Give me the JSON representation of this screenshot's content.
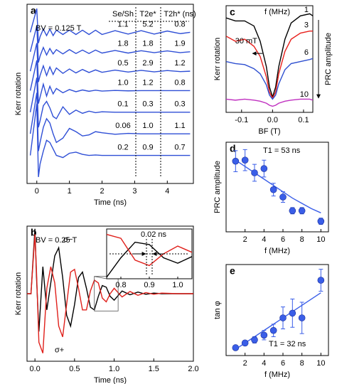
{
  "chart_data": [
    {
      "type": "line",
      "letter": "a",
      "xlabel": "Time (ns)",
      "ylabel": "Kerr rotation",
      "annotation": "BV = 0.125 T",
      "xlim": [
        -0.3,
        4.8
      ],
      "ylim": [
        0.3,
        8.6
      ],
      "xticks": [
        0,
        1,
        2,
        3,
        4
      ],
      "x": [
        -0.2,
        0,
        0.05,
        0.1,
        0.2,
        0.3,
        0.4,
        0.5,
        0.6,
        0.8,
        1.0,
        1.2,
        1.4,
        1.6,
        1.8,
        2.0,
        2.4,
        2.8,
        3.2,
        3.6,
        4.0,
        4.4,
        4.7
      ],
      "series": [
        {
          "color": "#2f4fd6",
          "values": [
            7.3,
            8.4,
            6.8,
            7.1,
            7.45,
            7.15,
            7.45,
            7.15,
            7.4,
            7.2,
            7.4,
            7.2,
            7.4,
            7.2,
            7.4,
            7.2,
            7.38,
            7.22,
            7.38,
            7.22,
            7.36,
            7.24,
            7.3
          ]
        },
        {
          "color": "#2f4fd6",
          "values": [
            6.4,
            7.6,
            5.9,
            6.2,
            6.6,
            6.25,
            6.55,
            6.3,
            6.5,
            6.3,
            6.5,
            6.32,
            6.48,
            6.32,
            6.48,
            6.34,
            6.46,
            6.34,
            6.45,
            6.36,
            6.44,
            6.36,
            6.4
          ]
        },
        {
          "color": "#2f4fd6",
          "values": [
            5.5,
            6.8,
            5.0,
            5.3,
            5.75,
            5.3,
            5.7,
            5.35,
            5.65,
            5.4,
            5.6,
            5.42,
            5.58,
            5.44,
            5.56,
            5.45,
            5.55,
            5.46,
            5.54,
            5.47,
            5.53,
            5.48,
            5.5
          ]
        },
        {
          "color": "#2f4fd6",
          "values": [
            4.6,
            6.0,
            4.0,
            4.3,
            4.9,
            4.35,
            4.8,
            4.45,
            4.7,
            4.5,
            4.65,
            4.55,
            4.63,
            4.57,
            4.62,
            4.58,
            4.61,
            4.59,
            4.6,
            4.6,
            4.6,
            4.6,
            4.6
          ]
        },
        {
          "color": "#2f4fd6",
          "values": [
            3.6,
            5.2,
            2.9,
            3.2,
            3.9,
            4.1,
            3.8,
            3.4,
            3.3,
            3.85,
            3.5,
            3.7,
            3.55,
            3.65,
            3.58,
            3.62,
            3.6,
            3.6,
            3.6,
            3.6,
            3.6,
            3.6,
            3.6
          ]
        },
        {
          "color": "#2f4fd6",
          "values": [
            2.6,
            4.5,
            1.8,
            2.2,
            2.9,
            3.3,
            3.1,
            2.6,
            2.2,
            2.4,
            2.85,
            2.7,
            2.5,
            2.55,
            2.7,
            2.65,
            2.58,
            2.62,
            2.6,
            2.6,
            2.6,
            2.6,
            2.6
          ]
        },
        {
          "color": "#2f4fd6",
          "values": [
            1.6,
            4.0,
            0.6,
            1.2,
            1.8,
            2.3,
            2.2,
            1.9,
            1.6,
            1.5,
            1.7,
            1.75,
            1.65,
            1.6,
            1.62,
            1.6,
            1.6,
            1.6,
            1.6,
            1.6,
            1.6,
            1.6,
            1.6
          ]
        }
      ],
      "table": {
        "header": [
          "Se/Sh",
          "T2e*",
          "T2h* (ns)"
        ],
        "colors": [
          "#000000",
          "#2f4fd6",
          "#e0201b"
        ],
        "rows": [
          [
            "1.1",
            "5.2",
            "0.8"
          ],
          [
            "1.8",
            "1.8",
            "1.9"
          ],
          [
            "0.5",
            "2.9",
            "1.2"
          ],
          [
            "1.0",
            "1.2",
            "0.8"
          ],
          [
            "0.1",
            "0.3",
            "0.3"
          ],
          [
            "0.06",
            "1.0",
            "1.1"
          ],
          [
            "0.2",
            "0.9",
            "0.7"
          ]
        ]
      }
    },
    {
      "type": "line",
      "letter": "b",
      "xlabel": "Time (ns)",
      "ylabel": "Kerr rotation",
      "annotation": "BV = 0.25 T",
      "xlim": [
        -0.1,
        2.0
      ],
      "ylim": [
        -1.25,
        1.25
      ],
      "xticks": [
        {
          "value": 0,
          "label": "0.0"
        },
        0.5,
        {
          "value": 1,
          "label": "1.0"
        },
        1.5,
        {
          "value": 2,
          "label": "2.0"
        }
      ],
      "x": [
        -0.1,
        -0.05,
        0,
        0.02,
        0.05,
        0.1,
        0.15,
        0.2,
        0.25,
        0.3,
        0.35,
        0.4,
        0.45,
        0.5,
        0.55,
        0.6,
        0.65,
        0.7,
        0.75,
        0.8,
        0.85,
        0.9,
        0.95,
        1.0,
        1.1,
        1.2,
        1.3,
        1.4,
        1.5,
        1.6,
        1.8,
        2.0
      ],
      "series": [
        {
          "name": "σ−",
          "color": "#000000",
          "values": [
            0,
            0,
            1.2,
            0.3,
            -0.7,
            0.5,
            -0.3,
            0.2,
            0.7,
            0.85,
            0.3,
            -0.4,
            -0.6,
            -0.2,
            0.3,
            0.4,
            0.1,
            -0.25,
            -0.3,
            -0.05,
            0.15,
            0.12,
            -0.05,
            -0.12,
            0.05,
            -0.02,
            0.03,
            -0.01,
            0.01,
            0,
            0,
            0
          ]
        },
        {
          "name": "σ+",
          "color": "#e0201b",
          "values": [
            0,
            0,
            1.1,
            0.4,
            -0.9,
            -1.1,
            0.1,
            0.5,
            0.2,
            -0.6,
            -0.8,
            -0.2,
            0.4,
            0.45,
            0.1,
            -0.3,
            -0.3,
            0.05,
            0.25,
            0.2,
            -0.08,
            -0.15,
            0.0,
            0.1,
            -0.06,
            0.04,
            -0.03,
            0.02,
            -0.01,
            0.01,
            0,
            0
          ]
        }
      ],
      "inset": {
        "xlim": [
          0.75,
          1.05
        ],
        "ylim": [
          -0.32,
          0.32
        ],
        "xticks": [
          0.8,
          0.9,
          {
            "value": 1,
            "label": "1.0"
          }
        ],
        "annotation": "0.02 ns"
      }
    },
    {
      "type": "line",
      "letter": "c",
      "xlabel": "BF (T)",
      "ylabel": "Kerr rotation",
      "right_label": "PRC amplitude",
      "legend_title": "f (MHz)",
      "annotation": "30 mT",
      "xlim": [
        -0.15,
        0.13
      ],
      "ylim": [
        0,
        1.05
      ],
      "xticks": [
        -0.1,
        {
          "value": 0,
          "label": "0.0"
        },
        0.1
      ],
      "x": [
        -0.15,
        -0.12,
        -0.09,
        -0.06,
        -0.04,
        -0.02,
        -0.01,
        0,
        0.01,
        0.02,
        0.04,
        0.06,
        0.09,
        0.12,
        0.13
      ],
      "series": [
        {
          "name": "1",
          "color": "#000000",
          "values": [
            0.93,
            0.9,
            0.9,
            0.85,
            0.7,
            0.45,
            0.25,
            0.15,
            0.25,
            0.45,
            0.72,
            0.88,
            0.95,
            0.97,
            0.95
          ]
        },
        {
          "name": "3",
          "color": "#e8201c",
          "values": [
            0.75,
            0.7,
            0.72,
            0.65,
            0.55,
            0.35,
            0.2,
            0.14,
            0.2,
            0.38,
            0.6,
            0.72,
            0.78,
            0.8,
            0.8
          ]
        },
        {
          "name": "6",
          "color": "#2e4fd0",
          "values": [
            0.5,
            0.48,
            0.47,
            0.43,
            0.38,
            0.27,
            0.17,
            0.13,
            0.17,
            0.28,
            0.42,
            0.48,
            0.5,
            0.52,
            0.53
          ]
        },
        {
          "name": "10",
          "color": "#c030c0",
          "values": [
            0.13,
            0.12,
            0.13,
            0.12,
            0.11,
            0.09,
            0.07,
            0.06,
            0.07,
            0.09,
            0.11,
            0.12,
            0.13,
            0.13,
            0.12
          ]
        }
      ]
    },
    {
      "type": "scatter",
      "letter": "d",
      "xlabel": "f (MHz)",
      "ylabel": "PRC amplitude",
      "annotation": "T1 = 53 ns",
      "color": "#3a5ee8",
      "xlim": [
        0,
        10.8
      ],
      "ylim": [
        0.2,
        1.05
      ],
      "xticks": [
        2,
        4,
        6,
        8,
        10
      ],
      "x": [
        1,
        2,
        3,
        4,
        5,
        6,
        7,
        8,
        10
      ],
      "values": [
        0.87,
        0.88,
        0.76,
        0.8,
        0.6,
        0.53,
        0.4,
        0.4,
        0.3
      ],
      "errors": [
        0.1,
        0.1,
        0.08,
        0.08,
        0.06,
        0.05,
        0.03,
        0.03,
        0.03
      ],
      "fit": {
        "x": [
          1,
          2,
          3,
          4,
          5,
          6,
          7,
          8,
          9,
          10
        ],
        "values": [
          0.88,
          0.82,
          0.76,
          0.7,
          0.64,
          0.58,
          0.52,
          0.47,
          0.42,
          0.38
        ]
      }
    },
    {
      "type": "scatter",
      "letter": "e",
      "xlabel": "f (MHz)",
      "ylabel": "tan φ",
      "annotation": "T1 = 32 ns",
      "color": "#3a5ee8",
      "xlim": [
        0,
        10.8
      ],
      "ylim": [
        0,
        2.9
      ],
      "xticks": [
        2,
        4,
        6,
        8,
        10
      ],
      "x": [
        1,
        2,
        3,
        4,
        5,
        6,
        7,
        8,
        10
      ],
      "values": [
        0.25,
        0.4,
        0.5,
        0.65,
        0.8,
        1.2,
        1.35,
        1.2,
        2.4
      ],
      "errors": [
        0.05,
        0.08,
        0.1,
        0.15,
        0.2,
        0.35,
        0.45,
        0.5,
        0.35
      ],
      "fit": {
        "x": [
          1,
          10
        ],
        "values": [
          0.2,
          2.0
        ]
      }
    }
  ]
}
